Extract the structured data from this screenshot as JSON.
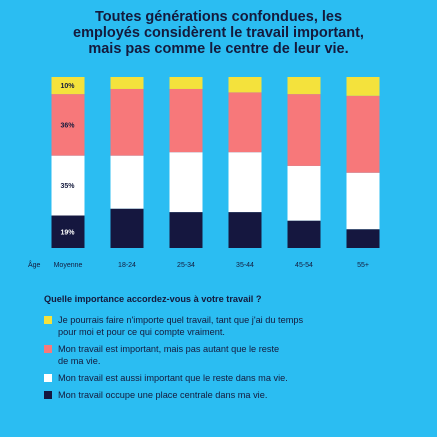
{
  "title_lines": [
    "Toutes générations confondues, les",
    "employés considèrent le travail important,",
    "mais pas comme le centre de leur vie."
  ],
  "colors": {
    "background": "#2bbdf2",
    "yellow": "#f4e23c",
    "red": "#f7787a",
    "white": "#ffffff",
    "navy": "#15173f"
  },
  "chart_data": {
    "type": "bar",
    "stacked": true,
    "title": "Toutes générations confondues, les employés considèrent le travail important, mais pas comme le centre de leur vie.",
    "xlabel": "Âge",
    "ylabel": "",
    "ylim": [
      0,
      100
    ],
    "grid": false,
    "categories": [
      "Moyenne",
      "18-24",
      "25-34",
      "35-44",
      "45-54",
      "55+"
    ],
    "series": [
      {
        "key": "navy",
        "values": [
          19,
          23,
          21,
          21,
          16,
          11
        ],
        "labels": [
          "19%",
          "",
          "",
          "",
          "",
          ""
        ]
      },
      {
        "key": "white",
        "values": [
          35,
          31,
          35,
          35,
          32,
          33
        ],
        "labels": [
          "35%",
          "",
          "",
          "",
          "",
          ""
        ]
      },
      {
        "key": "red",
        "values": [
          36,
          39,
          37,
          35,
          42,
          45
        ],
        "labels": [
          "36%",
          "",
          "",
          "",
          "",
          ""
        ]
      },
      {
        "key": "yellow",
        "values": [
          10,
          7,
          7,
          9,
          10,
          11
        ],
        "labels": [
          "10%",
          "",
          "",
          "",
          "",
          ""
        ]
      }
    ]
  },
  "legend": {
    "title": "Quelle importance accordez-vous à votre travail ?",
    "items": [
      {
        "key": "yellow",
        "lines": [
          "Je pourrais faire n'importe quel travail, tant que j'ai du temps",
          "pour moi et pour ce qui compte vraiment."
        ]
      },
      {
        "key": "red",
        "lines": [
          "Mon travail est important, mais pas autant que le reste",
          "de ma vie."
        ]
      },
      {
        "key": "white",
        "lines": [
          "Mon travail est aussi important que le reste dans ma vie."
        ]
      },
      {
        "key": "navy",
        "lines": [
          "Mon travail occupe une place centrale dans ma vie."
        ]
      }
    ]
  }
}
